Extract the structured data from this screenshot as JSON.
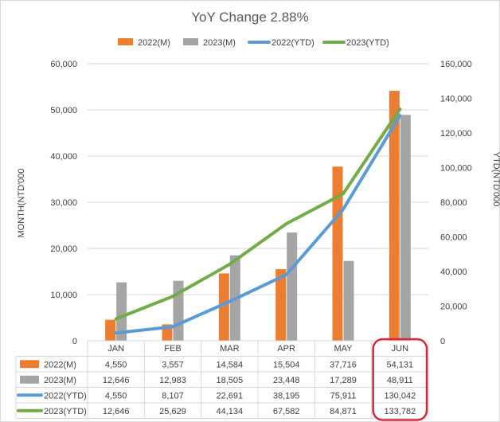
{
  "chart_data": {
    "type": "bar+line",
    "title": "YoY Change 2.88%",
    "categories": [
      "JAN",
      "FEB",
      "MAR",
      "APR",
      "MAY",
      "JUN"
    ],
    "y_left_label": "MONTH(NTD'000",
    "y_right_label": "YTD(NTD'000",
    "y_left_range": [
      0,
      60000
    ],
    "y_left_ticks": [
      "0",
      "10,000",
      "20,000",
      "30,000",
      "40,000",
      "50,000",
      "60,000"
    ],
    "y_right_range": [
      0,
      160000
    ],
    "y_right_ticks": [
      "0",
      "20,000",
      "40,000",
      "60,000",
      "80,000",
      "100,000",
      "120,000",
      "140,000",
      "160,000"
    ],
    "grid": true,
    "legend_position": "top",
    "highlight_category": "JUN",
    "highlight_color": "#d7263d",
    "series": [
      {
        "name": "2022(M)",
        "kind": "bar",
        "axis": "left",
        "color": "#ed7d31",
        "values": [
          4550,
          3557,
          14584,
          15504,
          37716,
          54131
        ],
        "labels": [
          "4,550",
          "3,557",
          "14,584",
          "15,504",
          "37,716",
          "54,131"
        ]
      },
      {
        "name": "2023(M)",
        "kind": "bar",
        "axis": "left",
        "color": "#a5a5a5",
        "values": [
          12646,
          12983,
          18505,
          23448,
          17289,
          48911
        ],
        "labels": [
          "12,646",
          "12,983",
          "18,505",
          "23,448",
          "17,289",
          "48,911"
        ]
      },
      {
        "name": "2022(YTD)",
        "kind": "line",
        "axis": "right",
        "color": "#5b9bd5",
        "values": [
          4550,
          8107,
          22691,
          38195,
          75911,
          130042
        ],
        "labels": [
          "4,550",
          "8,107",
          "22,691",
          "38,195",
          "75,911",
          "130,042"
        ]
      },
      {
        "name": "2023(YTD)",
        "kind": "line",
        "axis": "right",
        "color": "#70ad47",
        "values": [
          12646,
          25629,
          44134,
          67582,
          84871,
          133782
        ],
        "labels": [
          "12,646",
          "25,629",
          "44,134",
          "67,582",
          "84,871",
          "133,782"
        ]
      }
    ]
  }
}
